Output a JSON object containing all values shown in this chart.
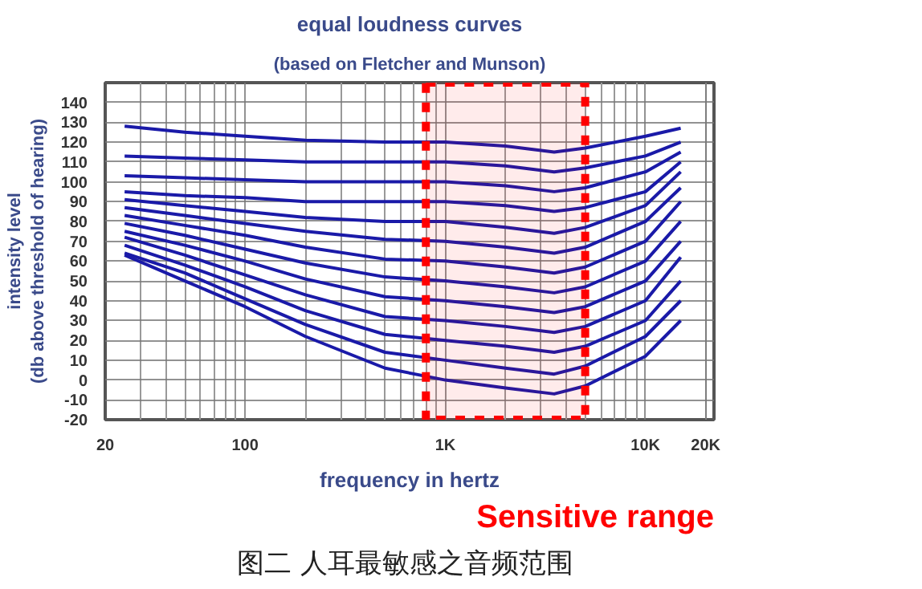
{
  "chart_data": {
    "type": "line",
    "title": "equal loudness curves",
    "subtitle": "(based on Fletcher and Munson)",
    "xlabel": "frequency in hertz",
    "ylabel": "intensity level\n(db above threshold of hearing)",
    "log": "x",
    "xlim": [
      20,
      22000
    ],
    "ylim": [
      -20,
      150
    ],
    "xticks": [
      20,
      100,
      {
        "value": 1000,
        "label": "1K"
      },
      {
        "value": 10000,
        "label": "10K"
      },
      {
        "value": 20000,
        "label": "20K"
      }
    ],
    "yticks": [
      -20,
      -10,
      0,
      10,
      20,
      30,
      40,
      50,
      60,
      70,
      80,
      90,
      100,
      110,
      120,
      130,
      140
    ],
    "grid": true,
    "line_style": "solid",
    "x": [
      25,
      50,
      100,
      200,
      500,
      1000,
      2000,
      3500,
      5000,
      10000,
      15000
    ],
    "series": [
      {
        "color": "#1a1aa8",
        "values": [
          128,
          125,
          123,
          121,
          120,
          120,
          118,
          115,
          117,
          123,
          127
        ]
      },
      {
        "color": "#1a1aa8",
        "values": [
          113,
          112,
          111,
          110,
          110,
          110,
          108,
          105,
          107,
          113,
          120
        ]
      },
      {
        "color": "#1a1aa8",
        "values": [
          103,
          102,
          101,
          100,
          100,
          100,
          98,
          95,
          97,
          105,
          115
        ]
      },
      {
        "color": "#1a1aa8",
        "values": [
          95,
          93,
          92,
          90,
          90,
          90,
          88,
          85,
          87,
          95,
          110
        ]
      },
      {
        "color": "#1a1aa8",
        "values": [
          91,
          88,
          85,
          82,
          80,
          80,
          77,
          74,
          77,
          88,
          105
        ]
      },
      {
        "color": "#1a1aa8",
        "values": [
          87,
          83,
          79,
          75,
          71,
          70,
          67,
          64,
          67,
          80,
          97
        ]
      },
      {
        "color": "#1a1aa8",
        "values": [
          83,
          78,
          73,
          67,
          61,
          60,
          57,
          54,
          57,
          70,
          90
        ]
      },
      {
        "color": "#1a1aa8",
        "values": [
          79,
          73,
          66,
          59,
          52,
          50,
          47,
          44,
          47,
          60,
          80
        ]
      },
      {
        "color": "#1a1aa8",
        "values": [
          75,
          68,
          60,
          51,
          42,
          40,
          37,
          34,
          37,
          50,
          70
        ]
      },
      {
        "color": "#1a1aa8",
        "values": [
          72,
          63,
          53,
          43,
          32,
          30,
          27,
          24,
          27,
          40,
          62
        ]
      },
      {
        "color": "#1a1aa8",
        "values": [
          68,
          58,
          47,
          35,
          23,
          20,
          17,
          14,
          17,
          30,
          50
        ]
      },
      {
        "color": "#1a1aa8",
        "values": [
          64,
          54,
          41,
          28,
          14,
          10,
          6,
          3,
          7,
          22,
          40
        ]
      },
      {
        "color": "#1a1aa8",
        "values": [
          63,
          50,
          37,
          22,
          6,
          0,
          -4,
          -7,
          -3,
          12,
          30
        ]
      }
    ],
    "bands": [
      {
        "axis": "x",
        "from": 800,
        "to": 5000,
        "label": "Sensitive range",
        "color": "#ff0000"
      }
    ],
    "annotations": [
      "图二  人耳最敏感之音频范围"
    ]
  }
}
